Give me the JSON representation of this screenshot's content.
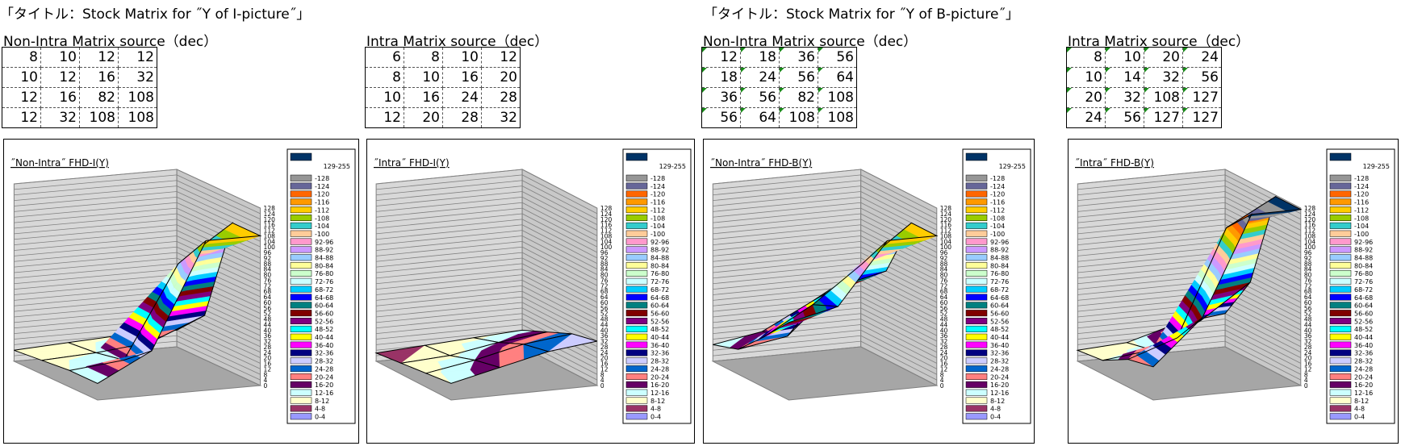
{
  "titles": [
    "「タイトル：Stock Matrix for ˝Y of I-picture˝」",
    "「タイトル：Stock Matrix for ˝Y of B-picture˝」"
  ],
  "legend": [
    {
      "label": "129-255",
      "color": "#003366"
    },
    {
      "label": "-128",
      "color": "#969696"
    },
    {
      "label": "-124",
      "color": "#666699"
    },
    {
      "label": "-120",
      "color": "#ff6600"
    },
    {
      "label": "-116",
      "color": "#ff9900"
    },
    {
      "label": "-112",
      "color": "#ffcc00"
    },
    {
      "label": "-108",
      "color": "#99cc00"
    },
    {
      "label": "-104",
      "color": "#33cccc"
    },
    {
      "label": "-100",
      "color": "#ffcc99"
    },
    {
      "label": "92-96",
      "color": "#ff99cc"
    },
    {
      "label": "88-92",
      "color": "#cc99ff"
    },
    {
      "label": "84-88",
      "color": "#99ccff"
    },
    {
      "label": "80-84",
      "color": "#ffff99"
    },
    {
      "label": "76-80",
      "color": "#ccffcc"
    },
    {
      "label": "72-76",
      "color": "#ccffff"
    },
    {
      "label": "68-72",
      "color": "#00ccff"
    },
    {
      "label": "64-68",
      "color": "#0000ff"
    },
    {
      "label": "60-64",
      "color": "#008080"
    },
    {
      "label": "56-60",
      "color": "#800000"
    },
    {
      "label": "52-56",
      "color": "#800080"
    },
    {
      "label": "48-52",
      "color": "#00ffff"
    },
    {
      "label": "40-44",
      "color": "#ffff00"
    },
    {
      "label": "36-40",
      "color": "#ff00ff"
    },
    {
      "label": "32-36",
      "color": "#000080"
    },
    {
      "label": "28-32",
      "color": "#ccccff"
    },
    {
      "label": "24-28",
      "color": "#0066cc"
    },
    {
      "label": "20-24",
      "color": "#ff8080"
    },
    {
      "label": "16-20",
      "color": "#660066"
    },
    {
      "label": "12-16",
      "color": "#ccffff"
    },
    {
      "label": "8-12",
      "color": "#ffffcc"
    },
    {
      "label": "4-8",
      "color": "#993366"
    },
    {
      "label": "0-4",
      "color": "#9999ff"
    }
  ],
  "surface_axis": {
    "zlim": [
      0,
      128
    ],
    "zticks": [
      0,
      4,
      8,
      12,
      16,
      20,
      24,
      28,
      32,
      36,
      40,
      44,
      48,
      52,
      56,
      60,
      64,
      68,
      72,
      76,
      80,
      84,
      88,
      92,
      96,
      100,
      104,
      108,
      112,
      116,
      120,
      124,
      128
    ]
  },
  "chart_data": [
    {
      "type": "surface",
      "table_title": "Non-Intra Matrix source（dec）",
      "title": "˝Non-Intra˝ FHD-I(Y)",
      "values": [
        [
          8,
          10,
          12,
          12
        ],
        [
          10,
          12,
          16,
          32
        ],
        [
          12,
          16,
          82,
          108
        ],
        [
          12,
          32,
          108,
          108
        ]
      ]
    },
    {
      "type": "surface",
      "table_title": "Intra Matrix source（dec）",
      "title": "˝Intra˝ FHD-I(Y)",
      "values": [
        [
          6,
          8,
          10,
          12
        ],
        [
          8,
          10,
          16,
          20
        ],
        [
          10,
          16,
          24,
          28
        ],
        [
          12,
          20,
          28,
          32
        ]
      ]
    },
    {
      "type": "surface",
      "table_title": "Non-Intra Matrix source（dec）",
      "title": "˝Non-Intra˝ FHD-B(Y)",
      "values": [
        [
          12,
          18,
          36,
          56
        ],
        [
          18,
          24,
          56,
          64
        ],
        [
          36,
          56,
          82,
          108
        ],
        [
          56,
          64,
          108,
          108
        ]
      ]
    },
    {
      "type": "surface",
      "table_title": "Intra Matrix source（dec）",
      "title": "˝Intra˝ FHD-B(Y)",
      "values": [
        [
          8,
          10,
          20,
          24
        ],
        [
          10,
          14,
          32,
          56
        ],
        [
          20,
          32,
          108,
          127
        ],
        [
          24,
          56,
          127,
          127
        ]
      ]
    }
  ]
}
